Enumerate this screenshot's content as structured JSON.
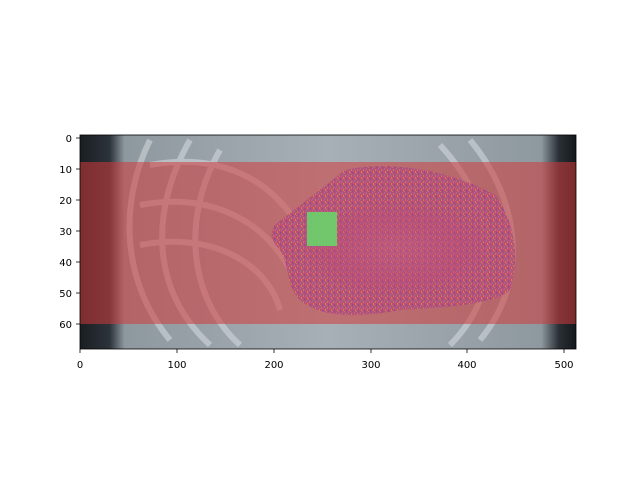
{
  "figure": {
    "background": "#ffffff",
    "x_ticks": [
      "0",
      "100",
      "200",
      "300",
      "400",
      "500"
    ],
    "y_ticks": [
      "0",
      "10",
      "20",
      "30",
      "40",
      "50",
      "60"
    ],
    "image_extent": {
      "x": [
        0,
        512
      ],
      "y": [
        0,
        69
      ]
    },
    "overlay": {
      "ct_slice": {
        "type": "grayscale coronal CT",
        "tint": "#9aa4ab"
      },
      "red_mask": {
        "color": "#d23a3a",
        "opacity": 0.55,
        "rows": [
          8,
          60
        ]
      },
      "purple_region": {
        "color": "#a070d0",
        "content": "speckled segmentation (liver/heart)"
      },
      "green_box": {
        "color": "#5fd05f",
        "x": [
          236,
          264
        ],
        "y": [
          24,
          35
        ]
      }
    }
  }
}
